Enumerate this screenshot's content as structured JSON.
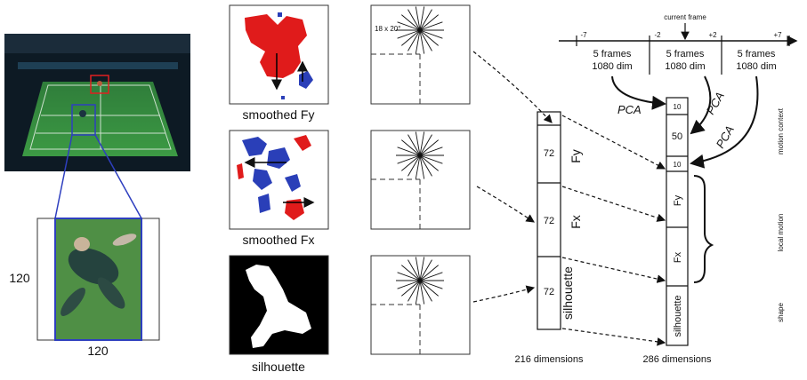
{
  "video_frame": {
    "size_label_vertical": "120",
    "size_label_horizontal": "120"
  },
  "panels": [
    {
      "label": "smoothed Fy"
    },
    {
      "label": "smoothed Fx"
    },
    {
      "label": "silhouette"
    }
  ],
  "grid": {
    "label": "18 x 20°"
  },
  "vector_216": {
    "segments": [
      {
        "count": "72",
        "name": "Fy"
      },
      {
        "count": "72",
        "name": "Fx"
      },
      {
        "count": "72",
        "name": "silhouette"
      }
    ],
    "caption": "216 dimensions"
  },
  "vector_286": {
    "segments": [
      "10",
      "50",
      "10",
      "Fy",
      "Fx",
      "silhouette"
    ],
    "caption": "286 dimensions"
  },
  "timeline": {
    "current_frame": "current frame",
    "ticks": [
      "-7",
      "-2",
      "+2",
      "+7"
    ],
    "blocks": [
      {
        "line1": "5 frames",
        "line2": "1080 dim"
      },
      {
        "line1": "5 frames",
        "line2": "1080 dim"
      },
      {
        "line1": "5 frames",
        "line2": "1080 dim"
      }
    ]
  },
  "pca_label": "PCA",
  "side_labels": [
    "motion context",
    "local motion",
    "shape"
  ],
  "colors": {
    "flow_positive": "#e01b1b",
    "flow_negative": "#2a3fb8",
    "court": "#3f9a3a",
    "box_red": "#e02020",
    "box_blue": "#2e3fbf"
  }
}
